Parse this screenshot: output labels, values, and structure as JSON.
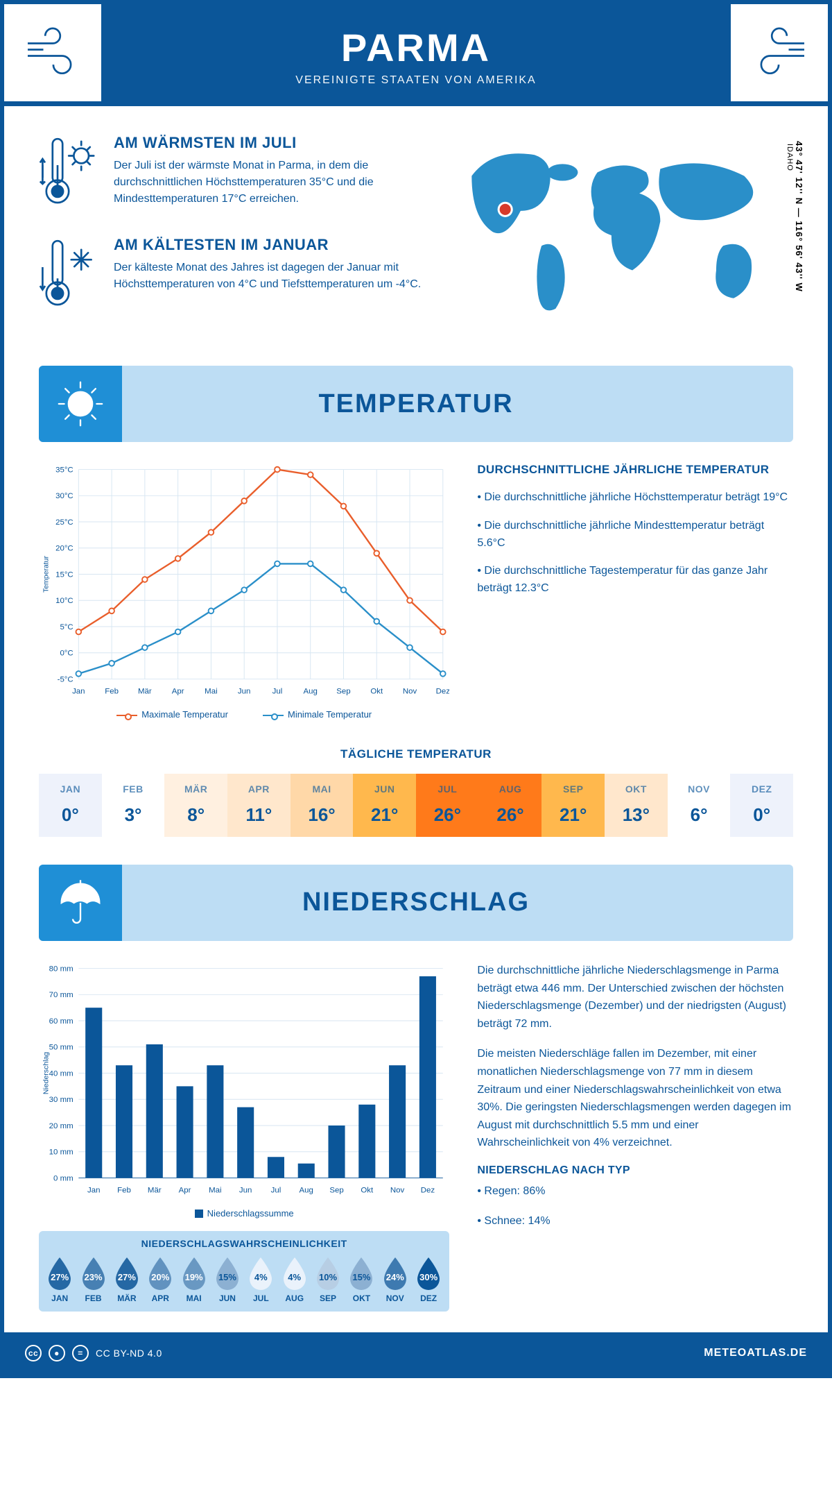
{
  "colors": {
    "brand": "#0b5699",
    "banner_bg": "#bdddf4",
    "tab": "#1f8fd6",
    "max_line": "#e95e2b",
    "min_line": "#2a8fc9",
    "bar": "#0b5699",
    "grid": "#d7e6f2",
    "marker": "#d73a2a"
  },
  "header": {
    "title": "PARMA",
    "subtitle": "VEREINIGTE STAATEN VON AMERIKA"
  },
  "intro": {
    "warm": {
      "title": "AM WÄRMSTEN IM JULI",
      "text": "Der Juli ist der wärmste Monat in Parma, in dem die durchschnittlichen Höchsttemperaturen 35°C und die Mindesttemperaturen 17°C erreichen."
    },
    "cold": {
      "title": "AM KÄLTESTEN IM JANUAR",
      "text": "Der kälteste Monat des Jahres ist dagegen der Januar mit Höchsttemperaturen von 4°C und Tiefsttemperaturen um -4°C."
    },
    "coords": "43° 47' 12'' N — 116° 56' 43'' W",
    "state": "IDAHO"
  },
  "temperature": {
    "banner": "TEMPERATUR",
    "chart": {
      "type": "line",
      "xlabels": [
        "Jan",
        "Feb",
        "Mär",
        "Apr",
        "Mai",
        "Jun",
        "Jul",
        "Aug",
        "Sep",
        "Okt",
        "Nov",
        "Dez"
      ],
      "ylabel": "Temperatur",
      "ylim": [
        -5,
        35
      ],
      "ytick_step": 5,
      "ytick_suffix": "°C",
      "grid_color": "#d7e6f2",
      "series": {
        "max": {
          "label": "Maximale Temperatur",
          "color": "#e95e2b",
          "values": [
            4,
            8,
            14,
            18,
            23,
            29,
            35,
            34,
            28,
            19,
            10,
            4
          ]
        },
        "min": {
          "label": "Minimale Temperatur",
          "color": "#2a8fc9",
          "values": [
            -4,
            -2,
            1,
            4,
            8,
            12,
            17,
            17,
            12,
            6,
            1,
            -4
          ]
        }
      }
    },
    "facts": {
      "title": "DURCHSCHNITTLICHE JÄHRLICHE TEMPERATUR",
      "items": [
        "• Die durchschnittliche jährliche Höchsttemperatur beträgt 19°C",
        "• Die durchschnittliche jährliche Mindesttemperatur beträgt 5.6°C",
        "• Die durchschnittliche Tagestemperatur für das ganze Jahr beträgt 12.3°C"
      ]
    },
    "daily": {
      "title": "TÄGLICHE TEMPERATUR",
      "months": [
        "JAN",
        "FEB",
        "MÄR",
        "APR",
        "MAI",
        "JUN",
        "JUL",
        "AUG",
        "SEP",
        "OKT",
        "NOV",
        "DEZ"
      ],
      "values": [
        "0°",
        "3°",
        "8°",
        "11°",
        "16°",
        "21°",
        "26°",
        "26°",
        "21°",
        "13°",
        "6°",
        "0°"
      ],
      "cell_colors": [
        "#eef2fb",
        "#ffffff",
        "#fff0e0",
        "#ffe7cc",
        "#ffd8a8",
        "#ffb84d",
        "#ff7a1a",
        "#ff7a1a",
        "#ffb84d",
        "#ffe7cc",
        "#ffffff",
        "#eef2fb"
      ]
    }
  },
  "precip": {
    "banner": "NIEDERSCHLAG",
    "chart": {
      "type": "bar",
      "xlabels": [
        "Jan",
        "Feb",
        "Mär",
        "Apr",
        "Mai",
        "Jun",
        "Jul",
        "Aug",
        "Sep",
        "Okt",
        "Nov",
        "Dez"
      ],
      "ylabel": "Niederschlag",
      "ylim": [
        0,
        80
      ],
      "ytick_step": 10,
      "ytick_suffix": " mm",
      "bar_color": "#0b5699",
      "grid_color": "#d7e6f2",
      "values": [
        65,
        43,
        51,
        35,
        43,
        27,
        8,
        5.5,
        20,
        28,
        43,
        77
      ],
      "legend": "Niederschlagssumme"
    },
    "text": {
      "p1": "Die durchschnittliche jährliche Niederschlagsmenge in Parma beträgt etwa 446 mm. Der Unterschied zwischen der höchsten Niederschlagsmenge (Dezember) und der niedrigsten (August) beträgt 72 mm.",
      "p2": "Die meisten Niederschläge fallen im Dezember, mit einer monatlichen Niederschlagsmenge von 77 mm in diesem Zeitraum und einer Niederschlagswahrscheinlichkeit von etwa 30%. Die geringsten Niederschlagsmengen werden dagegen im August mit durchschnittlich 5.5 mm und einer Wahrscheinlichkeit von 4% verzeichnet.",
      "type_title": "NIEDERSCHLAG NACH TYP",
      "type_items": [
        "• Regen: 86%",
        "• Schnee: 14%"
      ]
    },
    "prob": {
      "title": "NIEDERSCHLAGSWAHRSCHEINLICHKEIT",
      "months": [
        "JAN",
        "FEB",
        "MÄR",
        "APR",
        "MAI",
        "JUN",
        "JUL",
        "AUG",
        "SEP",
        "OKT",
        "NOV",
        "DEZ"
      ],
      "values": [
        27,
        23,
        27,
        20,
        19,
        15,
        4,
        4,
        10,
        15,
        24,
        30
      ],
      "min_color": "#eaf2fb",
      "max_color": "#0b5699"
    }
  },
  "footer": {
    "license": "CC BY-ND 4.0",
    "brand": "METEOATLAS.DE"
  }
}
